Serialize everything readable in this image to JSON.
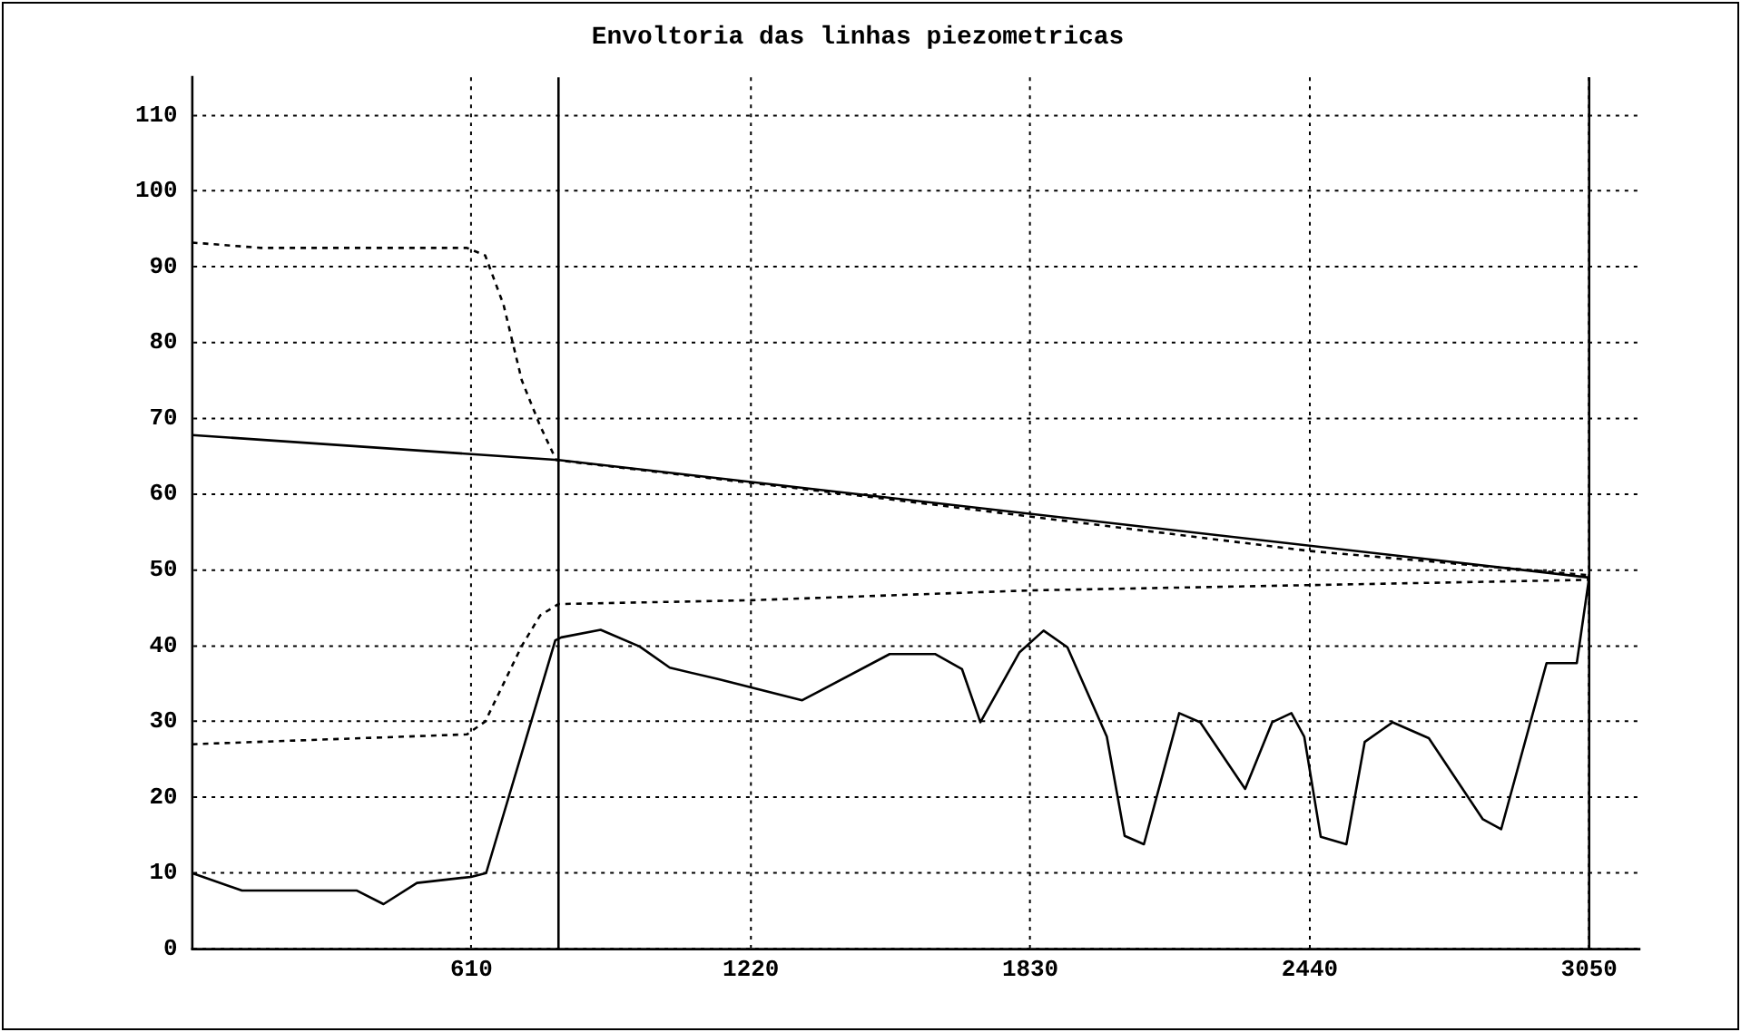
{
  "chart_data": {
    "type": "line",
    "title": "Envoltoria das linhas piezometricas",
    "xlim": [
      0,
      3160
    ],
    "xticks": [
      610,
      1220,
      1830,
      2440,
      3050
    ],
    "ylim": [
      0,
      115
    ],
    "yticks": [
      0,
      10,
      20,
      30,
      40,
      50,
      60,
      70,
      80,
      90,
      100,
      110
    ],
    "grid": true,
    "legend": false,
    "marker": "none",
    "ref_lines": [
      {
        "axis": "x",
        "value": 800,
        "color": "#000000"
      },
      {
        "axis": "x",
        "value": 3050,
        "color": "#000000"
      }
    ],
    "series": [
      {
        "color": "#000000",
        "line_style": "solid",
        "x": [
          0,
          800,
          3050
        ],
        "values": [
          67.8,
          64.5,
          49
        ]
      },
      {
        "color": "#000000",
        "line_style": "dashed",
        "x": [
          0,
          150,
          600,
          640,
          680,
          720,
          760,
          795,
          1500,
          2440,
          3050
        ],
        "values": [
          93.2,
          92.5,
          92.5,
          91.5,
          85,
          75,
          69,
          64.5,
          59.5,
          52.5,
          49.3
        ]
      },
      {
        "color": "#000000",
        "line_style": "dashed",
        "x": [
          0,
          600,
          640,
          680,
          720,
          760,
          800,
          1220,
          1830,
          2440,
          3050
        ],
        "values": [
          27,
          28.3,
          30,
          35,
          40,
          44,
          45.5,
          46,
          47.3,
          48,
          48.7
        ]
      },
      {
        "color": "#000000",
        "line_style": "solid",
        "x": [
          0,
          109,
          359,
          418,
          491,
          609,
          642,
          793,
          806,
          892,
          977,
          1043,
          1148,
          1332,
          1523,
          1622,
          1681,
          1721,
          1806,
          1859,
          1911,
          1997,
          2036,
          2078,
          2155,
          2201,
          2299,
          2358,
          2400,
          2428,
          2464,
          2520,
          2560,
          2621,
          2700,
          2818,
          2858,
          2957,
          3023,
          3049
        ],
        "values": [
          10,
          7.7,
          7.7,
          5.9,
          8.7,
          9.5,
          10,
          40.7,
          41.1,
          42.1,
          39.9,
          37.1,
          35.6,
          32.8,
          38.9,
          38.9,
          36.9,
          29.9,
          39.1,
          42,
          39.8,
          28,
          14.9,
          13.8,
          31.1,
          29.9,
          21.1,
          29.9,
          31.1,
          28,
          14.8,
          13.8,
          27.3,
          29.9,
          27.8,
          17.1,
          15.8,
          37.7,
          37.7,
          48.6
        ]
      }
    ]
  }
}
